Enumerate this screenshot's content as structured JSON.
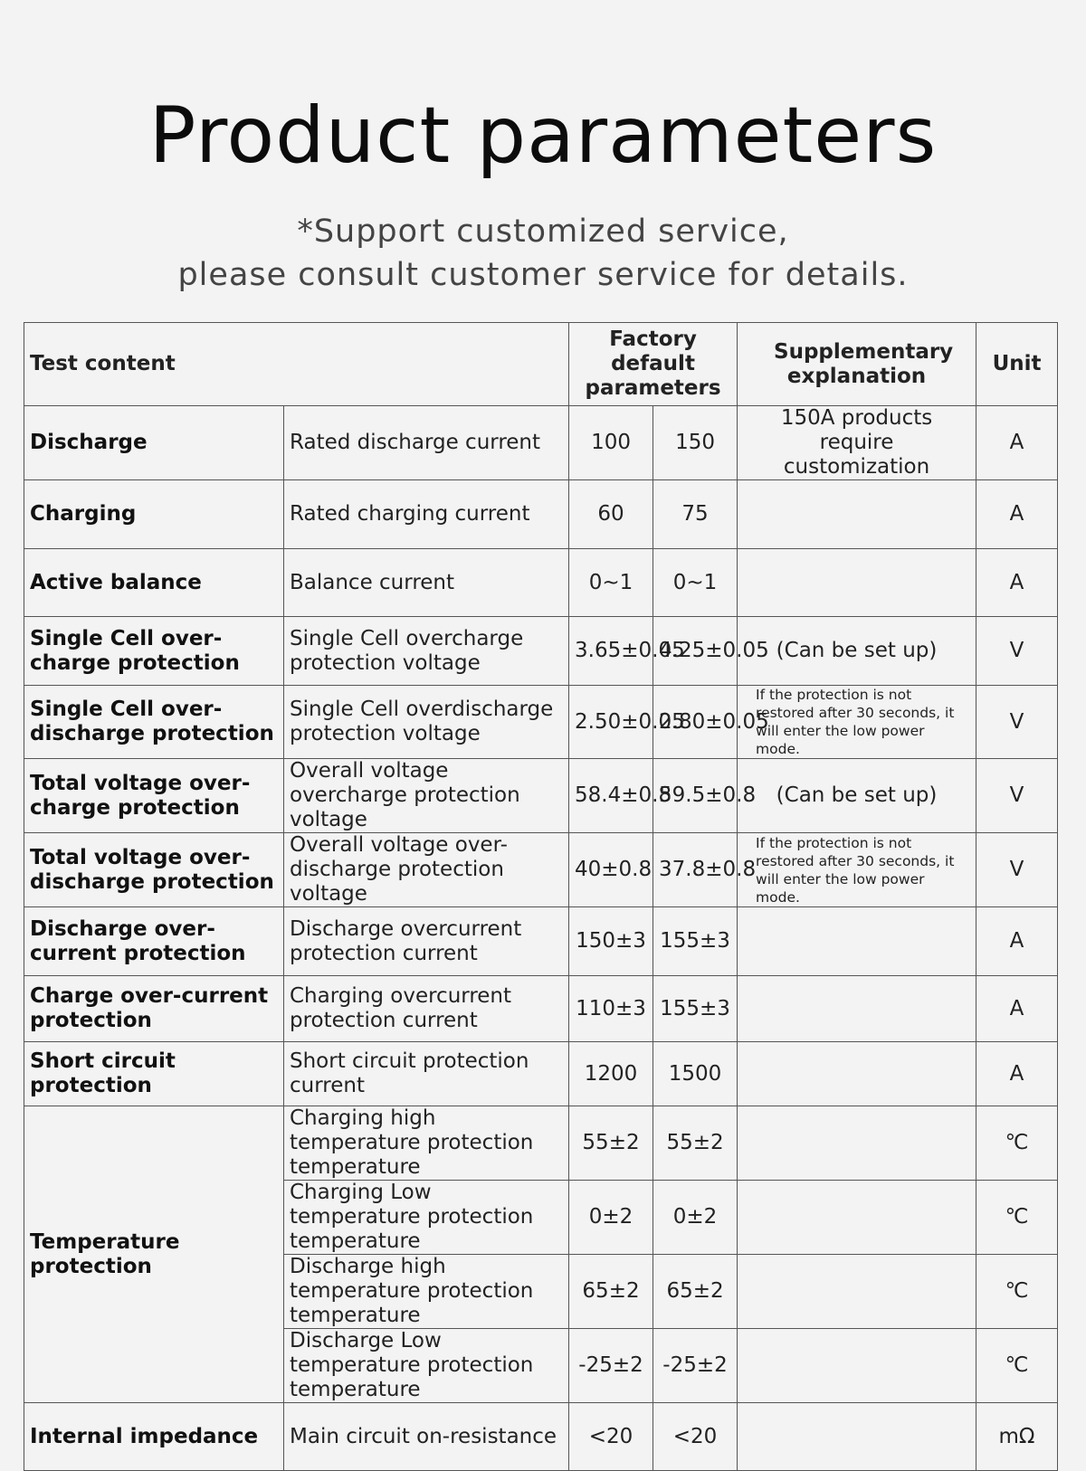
{
  "title": "Product parameters",
  "subtitle": [
    "*Support customized service,",
    "please consult customer service for details."
  ],
  "header": {
    "test_content": "Test content",
    "factory_default": "Factory default parameters",
    "supplementary": "Supplementary explanation",
    "unit": "Unit"
  },
  "rows": [
    {
      "category": "Discharge",
      "item": "Rated discharge current",
      "v1": "100",
      "v2": "150",
      "note": "150A products require customization",
      "unit": "A"
    },
    {
      "category": "Charging",
      "item": "Rated charging current",
      "v1": "60",
      "v2": "75",
      "note": "",
      "unit": "A"
    },
    {
      "category": "Active balance",
      "item": "Balance current",
      "v1": "0~1",
      "v2": "0~1",
      "note": "",
      "unit": "A"
    },
    {
      "category": "Single Cell over-charge protection",
      "item": "Single Cell overcharge protection voltage",
      "v1": "3.65±0.05",
      "v2": "4.25±0.05",
      "note": "(Can be set up)",
      "unit": "V"
    },
    {
      "category": "Single Cell over-discharge protection",
      "item": "Single Cell overdischarge protection voltage",
      "v1": "2.50±0.05",
      "v2": "2.80±0.05",
      "note": "If the protection is not restored after 30 seconds, it will enter the low power mode.",
      "unit": "V"
    },
    {
      "category": "Total voltage over-charge protection",
      "item": "Overall voltage overcharge protection voltage",
      "v1": "58.4±0.8",
      "v2": "59.5±0.8",
      "note": "(Can be set up)",
      "unit": "V"
    },
    {
      "category": "Total voltage over-discharge protection",
      "item": "Overall voltage over-discharge protection voltage",
      "v1": "40±0.8",
      "v2": "37.8±0.8",
      "note": "If the protection is not restored after 30 seconds, it will enter the low power mode.",
      "unit": "V"
    },
    {
      "category": "Discharge over-current protection",
      "item": "Discharge overcurrent protection current",
      "v1": "150±3",
      "v2": "155±3",
      "note": "",
      "unit": "A"
    },
    {
      "category": "Charge over-current protection",
      "item": "Charging overcurrent protection current",
      "v1": "110±3",
      "v2": "155±3",
      "note": "",
      "unit": "A"
    },
    {
      "category": "Short circuit protection",
      "item": "Short circuit protection current",
      "v1": "1200",
      "v2": "1500",
      "note": "",
      "unit": "A"
    },
    {
      "category": "Temperature protection",
      "item": "Charging high temperature protection temperature",
      "v1": "55±2",
      "v2": "55±2",
      "note": "",
      "unit": "℃"
    },
    {
      "category": "",
      "item": "Charging Low temperature protection temperature",
      "v1": "0±2",
      "v2": "0±2",
      "note": "",
      "unit": "℃"
    },
    {
      "category": "",
      "item": "Discharge high temperature protection temperature",
      "v1": "65±2",
      "v2": "65±2",
      "note": "",
      "unit": "℃"
    },
    {
      "category": "",
      "item": "Discharge Low temperature protection temperature",
      "v1": "-25±2",
      "v2": "-25±2",
      "note": "",
      "unit": "℃"
    },
    {
      "category": "Internal impedance",
      "item": "Main circuit on-resistance",
      "v1": "<20",
      "v2": "<20",
      "note": "",
      "unit": "mΩ"
    }
  ]
}
